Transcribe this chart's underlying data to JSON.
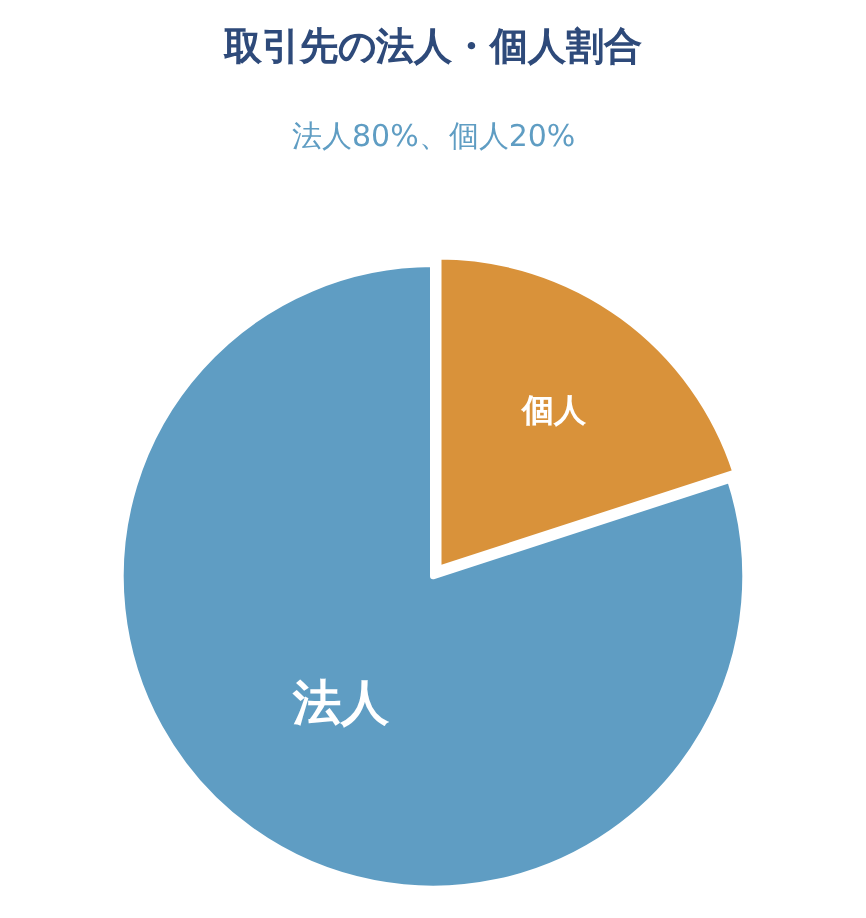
{
  "chart_data": {
    "type": "pie",
    "title": "取引先の法人・個人割合",
    "subtitle": "法人80%、個人20%",
    "categories": [
      "個人",
      "法人"
    ],
    "values": [
      20,
      80
    ],
    "colors": [
      "#d9923a",
      "#5f9dc3"
    ],
    "legend": false
  }
}
